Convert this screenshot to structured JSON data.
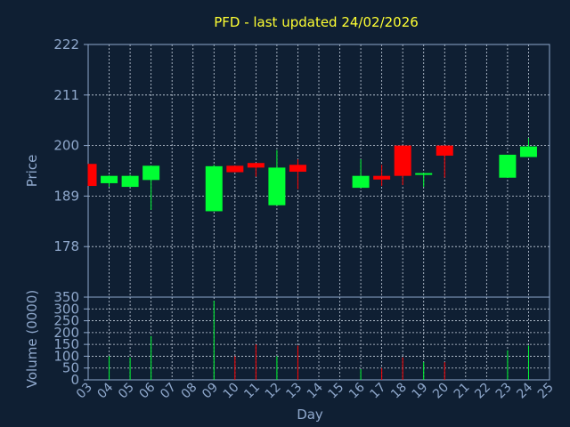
{
  "chart_data": {
    "type": "candlestick",
    "title": "PFD - last updated 24/02/2026",
    "xlabel": "Day",
    "colors": {
      "background": "#0f1f33",
      "up": "#00ff33",
      "down": "#ff0000",
      "text": "#8fa8cc",
      "title": "#ffff33"
    },
    "price_panel": {
      "ylabel": "Price",
      "ylim": [
        167,
        222
      ],
      "yticks": [
        "222",
        "211",
        "200",
        "189",
        "178"
      ],
      "candles": [
        {
          "x": 3,
          "open": 196.0,
          "high": 196.0,
          "low": 191.2,
          "close": 191.2
        },
        {
          "x": 4,
          "open": 191.8,
          "high": 193.5,
          "low": 191.0,
          "close": 193.4
        },
        {
          "x": 5,
          "open": 191.0,
          "high": 193.6,
          "low": 191.0,
          "close": 193.4
        },
        {
          "x": 6,
          "open": 192.5,
          "high": 195.6,
          "low": 186.0,
          "close": 195.6
        },
        {
          "x": 9,
          "open": 185.7,
          "high": 195.8,
          "low": 185.7,
          "close": 195.5
        },
        {
          "x": 10,
          "open": 195.6,
          "high": 195.6,
          "low": 194.2,
          "close": 194.2
        },
        {
          "x": 11,
          "open": 196.2,
          "high": 196.2,
          "low": 193.2,
          "close": 195.2
        },
        {
          "x": 12,
          "open": 187.0,
          "high": 199.0,
          "low": 187.0,
          "close": 195.2
        },
        {
          "x": 13,
          "open": 195.8,
          "high": 197.0,
          "low": 190.5,
          "close": 194.3
        },
        {
          "x": 16,
          "open": 190.8,
          "high": 197.0,
          "low": 190.8,
          "close": 193.4
        },
        {
          "x": 17,
          "open": 193.4,
          "high": 195.8,
          "low": 191.2,
          "close": 192.6
        },
        {
          "x": 18,
          "open": 200.0,
          "high": 200.0,
          "low": 191.4,
          "close": 193.4
        },
        {
          "x": 19,
          "open": 193.8,
          "high": 194.0,
          "low": 191.0,
          "close": 194.0
        },
        {
          "x": 20,
          "open": 200.0,
          "high": 200.0,
          "low": 193.0,
          "close": 197.8
        },
        {
          "x": 23,
          "open": 193.0,
          "high": 198.0,
          "low": 193.0,
          "close": 198.0
        },
        {
          "x": 24,
          "open": 197.5,
          "high": 201.6,
          "low": 197.5,
          "close": 199.8
        }
      ]
    },
    "volume_panel": {
      "ylabel": "Volume (0000)",
      "ylim": [
        0,
        350
      ],
      "yticks": [
        "350",
        "300",
        "250",
        "200",
        "150",
        "100",
        "50",
        "0"
      ],
      "bars": [
        {
          "x": 4,
          "value": 100,
          "up": true
        },
        {
          "x": 5,
          "value": 95,
          "up": true
        },
        {
          "x": 6,
          "value": 185,
          "up": true
        },
        {
          "x": 9,
          "value": 335,
          "up": true
        },
        {
          "x": 10,
          "value": 100,
          "up": false
        },
        {
          "x": 11,
          "value": 150,
          "up": false
        },
        {
          "x": 12,
          "value": 100,
          "up": true
        },
        {
          "x": 13,
          "value": 145,
          "up": false
        },
        {
          "x": 16,
          "value": 45,
          "up": true
        },
        {
          "x": 17,
          "value": 50,
          "up": false
        },
        {
          "x": 18,
          "value": 95,
          "up": false
        },
        {
          "x": 19,
          "value": 75,
          "up": true
        },
        {
          "x": 20,
          "value": 75,
          "up": false
        },
        {
          "x": 23,
          "value": 125,
          "up": true
        },
        {
          "x": 24,
          "value": 145,
          "up": true
        }
      ]
    },
    "x_categories": [
      "03",
      "04",
      "05",
      "06",
      "07",
      "08",
      "09",
      "10",
      "11",
      "12",
      "13",
      "14",
      "15",
      "16",
      "17",
      "18",
      "19",
      "20",
      "21",
      "22",
      "23",
      "24",
      "25"
    ],
    "grid": true
  }
}
